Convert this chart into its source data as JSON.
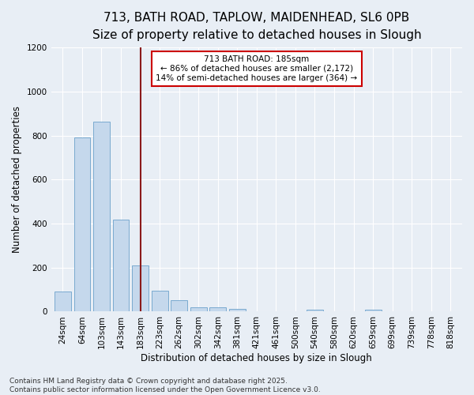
{
  "title_line1": "713, BATH ROAD, TAPLOW, MAIDENHEAD, SL6 0PB",
  "title_line2": "Size of property relative to detached houses in Slough",
  "xlabel": "Distribution of detached houses by size in Slough",
  "ylabel": "Number of detached properties",
  "categories": [
    "24sqm",
    "64sqm",
    "103sqm",
    "143sqm",
    "183sqm",
    "223sqm",
    "262sqm",
    "302sqm",
    "342sqm",
    "381sqm",
    "421sqm",
    "461sqm",
    "500sqm",
    "540sqm",
    "580sqm",
    "620sqm",
    "659sqm",
    "699sqm",
    "739sqm",
    "778sqm",
    "818sqm"
  ],
  "values": [
    90,
    790,
    865,
    420,
    210,
    95,
    52,
    20,
    20,
    13,
    0,
    0,
    0,
    8,
    0,
    0,
    9,
    0,
    0,
    0,
    0
  ],
  "bar_color": "#c5d8ec",
  "bar_edge_color": "#7aaad0",
  "subject_line_index": 4,
  "annotation_line1": "713 BATH ROAD: 185sqm",
  "annotation_line2": "← 86% of detached houses are smaller (2,172)",
  "annotation_line3": "14% of semi-detached houses are larger (364) →",
  "annotation_box_color": "#ffffff",
  "annotation_box_edge_color": "#cc0000",
  "vline_color": "#8b1a1a",
  "ylim": [
    0,
    1200
  ],
  "yticks": [
    0,
    200,
    400,
    600,
    800,
    1000,
    1200
  ],
  "bg_color": "#e8eef5",
  "plot_bg_color": "#e8eef5",
  "footer_line1": "Contains HM Land Registry data © Crown copyright and database right 2025.",
  "footer_line2": "Contains public sector information licensed under the Open Government Licence v3.0.",
  "title_fontsize": 11,
  "subtitle_fontsize": 9.5,
  "axis_label_fontsize": 8.5,
  "tick_fontsize": 7.5,
  "annotation_fontsize": 7.5,
  "footer_fontsize": 6.5
}
